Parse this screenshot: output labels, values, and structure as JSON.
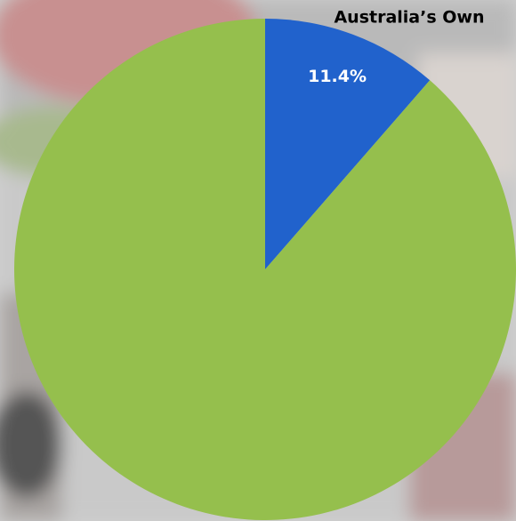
{
  "chart_data": {
    "type": "pie",
    "categories": [
      "Australia’s Own",
      null
    ],
    "values": [
      11.4,
      88.6
    ],
    "value_labels": [
      "11.4%",
      null
    ],
    "colors": [
      "#2162cc",
      "#95bf4d"
    ]
  }
}
